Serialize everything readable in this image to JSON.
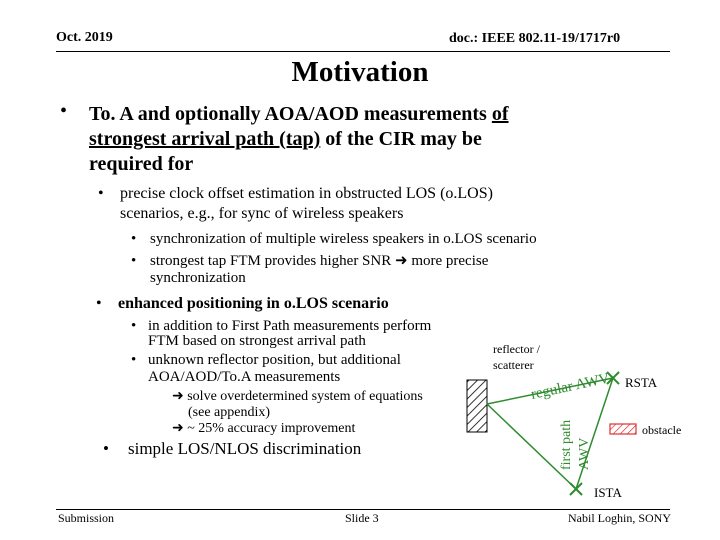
{
  "header": {
    "date": "Oct. 2019",
    "doc_id": "doc.: IEEE 802.11-19/1717r0"
  },
  "title": "Motivation",
  "main_bullet": {
    "line1_pre": "To. A and optionally AOA/AOD measurements ",
    "line1_u": "of",
    "line2_u": "strongest arrival path (tap)",
    "line2_post": " of the CIR may be",
    "line3": "required for"
  },
  "sub1": {
    "line1": "precise clock offset estimation in obstructed LOS (o.LOS)",
    "line2": "scenarios, e.g., for sync of wireless speakers",
    "items": [
      {
        "line1": "synchronization of multiple wireless speakers in o.LOS scenario"
      },
      {
        "line1_pre": "strongest tap FTM provides higher SNR ",
        "line1_post": " more precise",
        "line2": "synchronization"
      }
    ]
  },
  "sub2": {
    "label": "enhanced positioning in o.LOS scenario",
    "items": [
      {
        "line1": "in addition to First Path measurements perform",
        "line2": "FTM based on strongest arrival path"
      },
      {
        "line1": "unknown reflector position, but additional",
        "line2": "AOA/AOD/To.A measurements"
      }
    ],
    "arrow_line1": " solve overdetermined system of equations",
    "arrow_line2": "(see appendix)",
    "arrow_line3": " ~ 25% accuracy improvement"
  },
  "sub3": {
    "label": "simple LOS/NLOS discrimination"
  },
  "diagram": {
    "reflector_label_1": "reflector /",
    "reflector_label_2": "scatterer",
    "regular_awv": "regular AWV",
    "rsta": "RSTA",
    "obstacle": "obstacle",
    "first_path_awv_1": "first path",
    "first_path_awv_2": "AWV",
    "ista": "ISTA"
  },
  "footer": {
    "left": "Submission",
    "center": "Slide 3",
    "right": "Nabil Loghin, SONY"
  },
  "colors": {
    "diagram_green": "#2e8b2e",
    "obstacle_red": "#e03030"
  }
}
